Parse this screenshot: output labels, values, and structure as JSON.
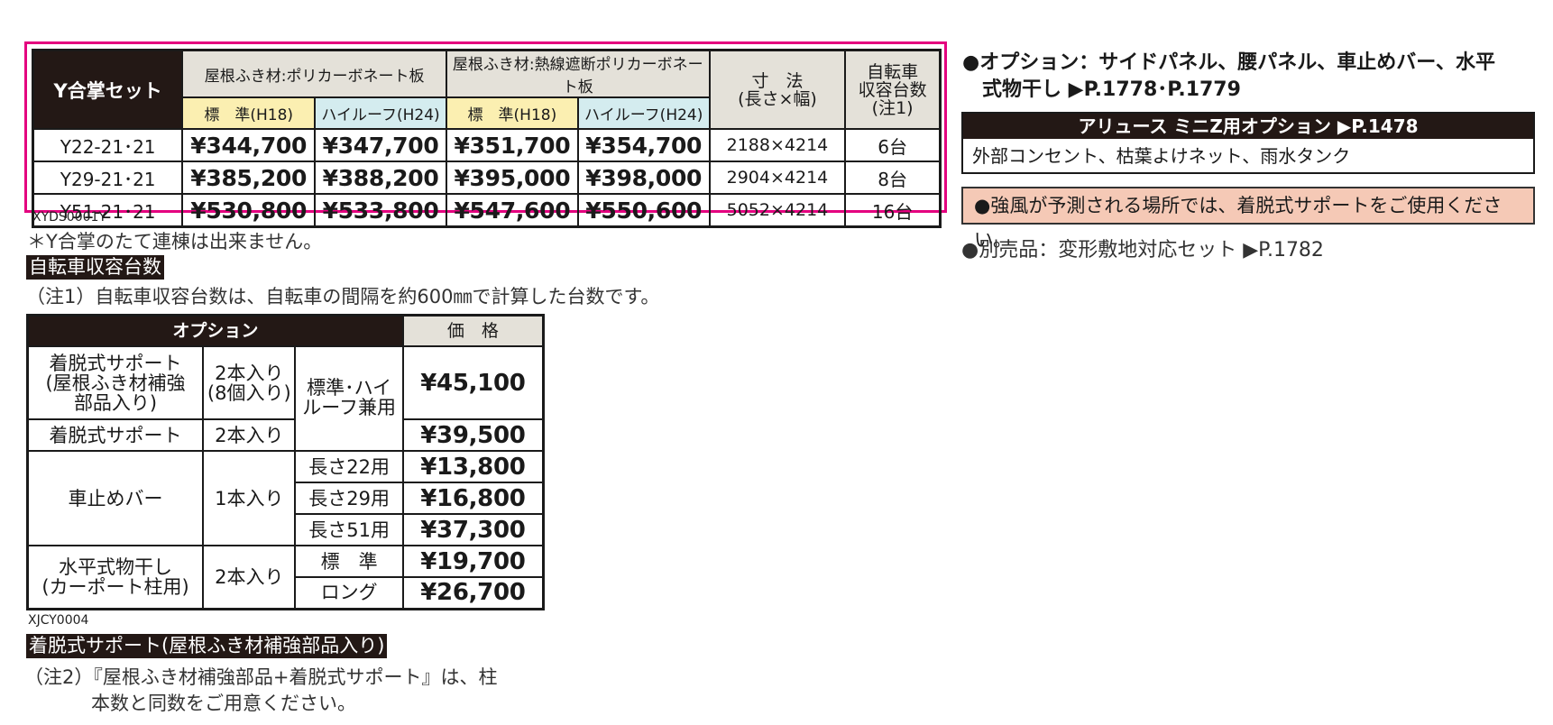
{
  "main_table": {
    "title": "Y合掌セット",
    "group1": "屋根ふき材:ポリカーボネート板",
    "group2": "屋根ふき材:熱線遮断ポリカーボネート板",
    "sub_std": "標　準(H18)",
    "sub_high": "ハイルーフ(H24)",
    "size_header_line1": "寸　法",
    "size_header_line2": "(長さ×幅)",
    "bike_header_line1": "自転車",
    "bike_header_line2": "収容台数",
    "bike_header_line3": "(注1)",
    "rows": [
      {
        "model": "Y22-21･21",
        "p1": "¥344,700",
        "p2": "¥347,700",
        "p3": "¥351,700",
        "p4": "¥354,700",
        "size": "2188×4214",
        "bikes": "6台"
      },
      {
        "model": "Y29-21･21",
        "p1": "¥385,200",
        "p2": "¥388,200",
        "p3": "¥395,000",
        "p4": "¥398,000",
        "size": "2904×4214",
        "bikes": "8台"
      },
      {
        "model": "Y51-21･21",
        "p1": "¥530,800",
        "p2": "¥533,800",
        "p3": "¥547,600",
        "p4": "¥550,600",
        "size": "5052×4214",
        "bikes": "16台"
      }
    ],
    "code": "XYDS0001Y"
  },
  "notes": {
    "no_vertical": "＊Y合掌のたて連棟は出来ません。",
    "bike_label": "自転車収容台数",
    "bike_note": "（注1）自転車収容台数は、自転車の間隔を約600㎜で計算した台数です。"
  },
  "option_table": {
    "header_option": "オプション",
    "header_price": "価　格",
    "r1_name_l1": "着脱式サポート",
    "r1_name_l2": "(屋根ふき材補強",
    "r1_name_l3": "部品入り)",
    "r1_qty_l1": "2本入り",
    "r1_qty_l2": "(8個入り)",
    "shared_note_l1": "標準･ハイ",
    "shared_note_l2": "ルーフ兼用",
    "r1_price": "¥45,100",
    "r2_name": "着脱式サポート",
    "r2_qty": "2本入り",
    "r2_price": "¥39,500",
    "r3_name": "車止めバー",
    "r3_qty": "1本入り",
    "r3_len1": "長さ22用",
    "r3_price1": "¥13,800",
    "r3_len2": "長さ29用",
    "r3_price2": "¥16,800",
    "r3_len3": "長さ51用",
    "r3_price3": "¥37,300",
    "r4_name_l1": "水平式物干し",
    "r4_name_l2": "(カーポート柱用)",
    "r4_qty": "2本入り",
    "r4_type1": "標　準",
    "r4_price1": "¥19,700",
    "r4_type2": "ロング",
    "r4_price2": "¥26,700",
    "code": "XJCY0004"
  },
  "support_section": {
    "label": "着脱式サポート(屋根ふき材補強部品入り)",
    "note_l1": "（注2）『屋根ふき材補強部品+着脱式サポート』は、柱",
    "note_l2": "本数と同数をご用意ください。"
  },
  "right_column": {
    "options_line1": "●オプション：サイドパネル、腰パネル、車止めバー、水平",
    "options_line2": "式物干し ▶P.1778･P.1779",
    "ref_header": "アリュース ミニZ用オプション ▶P.1478",
    "ref_body": "外部コンセント、枯葉よけネット、雨水タンク",
    "warning": "●強風が予測される場所では、着脱式サポートをご使用ください。",
    "separate": "●別売品：変形敷地対応セット ▶P.1782"
  },
  "colors": {
    "frame_magenta": "#e4007f",
    "header_dark": "#231815",
    "header_grey": "#e4e1d9",
    "std_yellow": "#fbefb1",
    "high_blue": "#d4ecef",
    "warning_bg": "#f5c9b6"
  }
}
